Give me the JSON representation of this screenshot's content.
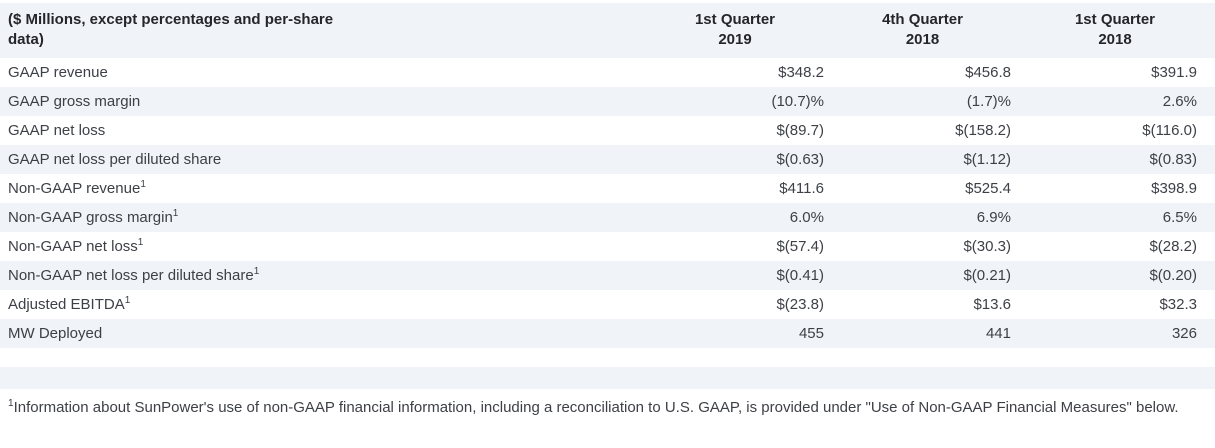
{
  "colors": {
    "stripe": "#f0f4f8",
    "body_text": "#3d4046",
    "header_text": "#24262b",
    "background": "#ffffff"
  },
  "table": {
    "header": {
      "label": "($ Millions, except percentages and per-share data)",
      "columns": [
        {
          "line1": "1st Quarter",
          "line2": "2019"
        },
        {
          "line1": "4th Quarter",
          "line2": "2018"
        },
        {
          "line1": "1st Quarter",
          "line2": "2018"
        }
      ]
    },
    "rows": [
      {
        "label": "GAAP revenue",
        "sup": "",
        "values": [
          "$348.2",
          "$456.8",
          "$391.9"
        ]
      },
      {
        "label": "GAAP gross margin",
        "sup": "",
        "values": [
          "(10.7)%",
          "(1.7)%",
          "2.6%"
        ]
      },
      {
        "label": "GAAP net loss",
        "sup": "",
        "values": [
          "$(89.7)",
          "$(158.2)",
          "$(116.0)"
        ]
      },
      {
        "label": "GAAP net loss per diluted share",
        "sup": "",
        "values": [
          "$(0.63)",
          "$(1.12)",
          "$(0.83)"
        ]
      },
      {
        "label": "Non-GAAP revenue",
        "sup": "1",
        "values": [
          "$411.6",
          "$525.4",
          "$398.9"
        ]
      },
      {
        "label": "Non-GAAP gross margin",
        "sup": "1",
        "values": [
          "6.0%",
          "6.9%",
          "6.5%"
        ]
      },
      {
        "label": "Non-GAAP net loss",
        "sup": "1",
        "values": [
          "$(57.4)",
          "$(30.3)",
          "$(28.2)"
        ]
      },
      {
        "label": "Non-GAAP net loss per diluted share",
        "sup": "1",
        "values": [
          "$(0.41)",
          "$(0.21)",
          "$(0.20)"
        ]
      },
      {
        "label": "Adjusted EBITDA",
        "sup": "1",
        "values": [
          "$(23.8)",
          "$13.6",
          "$32.3"
        ]
      },
      {
        "label": "MW Deployed",
        "sup": "",
        "values": [
          "455",
          "441",
          "326"
        ]
      }
    ]
  },
  "footnote": {
    "sup": "1",
    "text": "Information about SunPower's use of non-GAAP financial information, including a reconciliation to U.S. GAAP, is provided under \"Use of Non-GAAP Financial Measures\" below."
  }
}
